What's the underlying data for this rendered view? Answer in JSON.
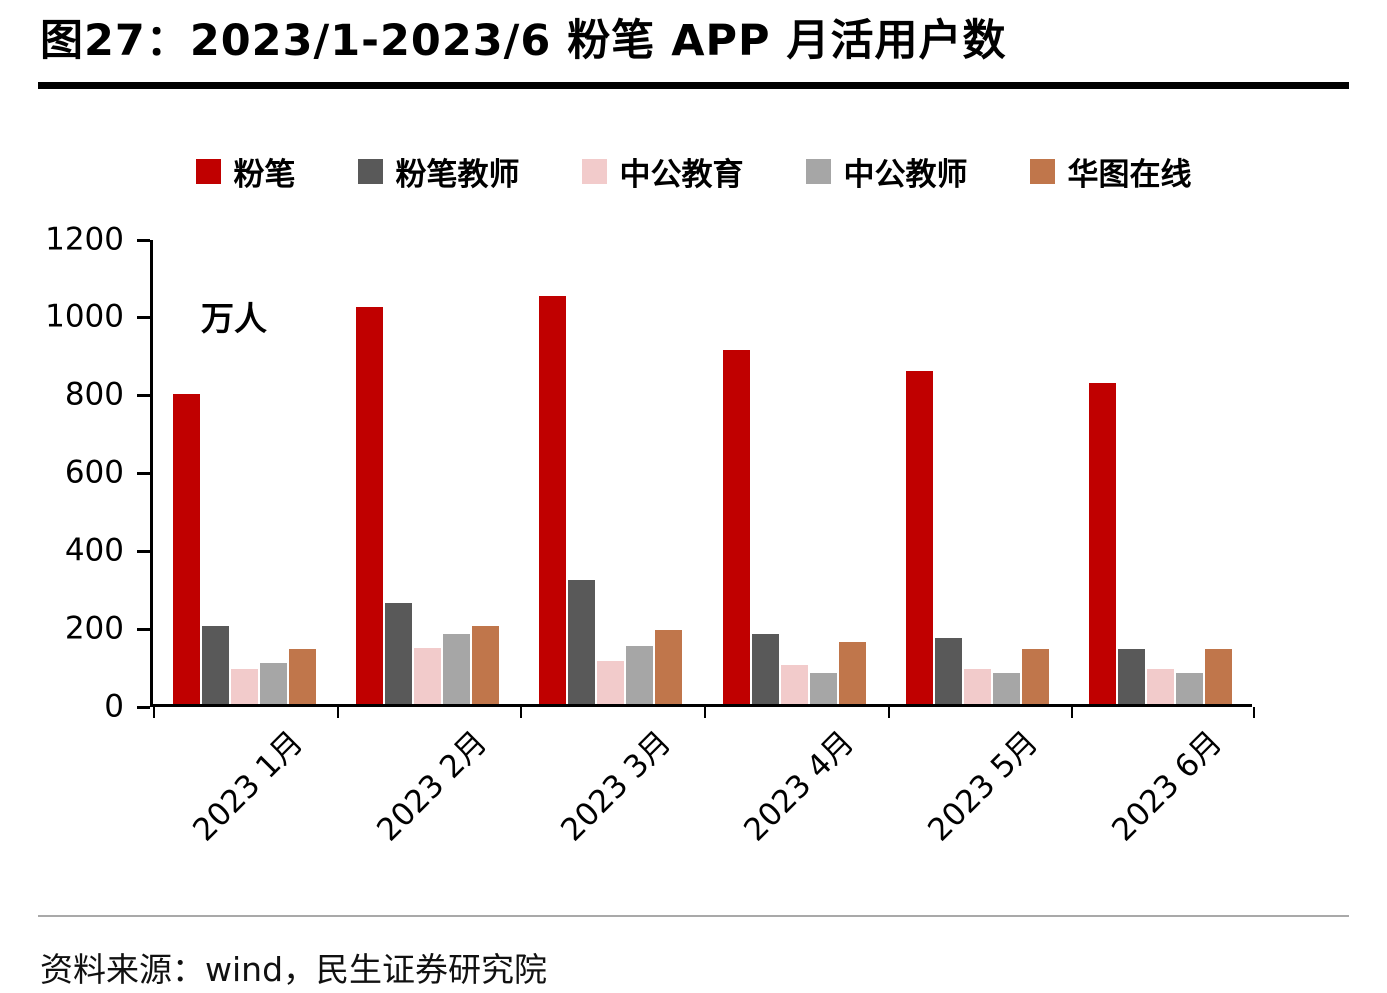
{
  "title": "图27：2023/1-2023/6 粉笔 APP 月活用户数",
  "footer": {
    "source": "资料来源：wind，民生证券研究院"
  },
  "chart_data": {
    "type": "bar",
    "title": "2023/1-2023/6 粉笔 APP 月活用户数",
    "unit_label": "万人",
    "categories": [
      "2023 1月",
      "2023 2月",
      "2023 3月",
      "2023 4月",
      "2023 5月",
      "2023 6月"
    ],
    "series": [
      {
        "key": "fenbi",
        "name": "粉笔",
        "color": "#C00000",
        "values": [
          800,
          1025,
          1055,
          915,
          860,
          830
        ]
      },
      {
        "key": "fenbi-teacher",
        "name": "粉笔教师",
        "color": "#595959",
        "values": [
          200,
          260,
          320,
          180,
          170,
          140
        ]
      },
      {
        "key": "zhonggong-education",
        "name": "中公教育",
        "color": "#F2CBCB",
        "values": [
          90,
          145,
          110,
          100,
          90,
          90
        ]
      },
      {
        "key": "zhonggong-teacher",
        "name": "中公教师",
        "color": "#A6A6A6",
        "values": [
          105,
          180,
          150,
          80,
          80,
          80
        ]
      },
      {
        "key": "huatu-online",
        "name": "华图在线",
        "color": "#C0764B",
        "values": [
          140,
          200,
          190,
          160,
          140,
          140
        ]
      }
    ],
    "ylim": [
      0,
      1200
    ],
    "ytick_step": 200,
    "grid": false,
    "legend_position": "top",
    "axis_color": "#000000"
  }
}
